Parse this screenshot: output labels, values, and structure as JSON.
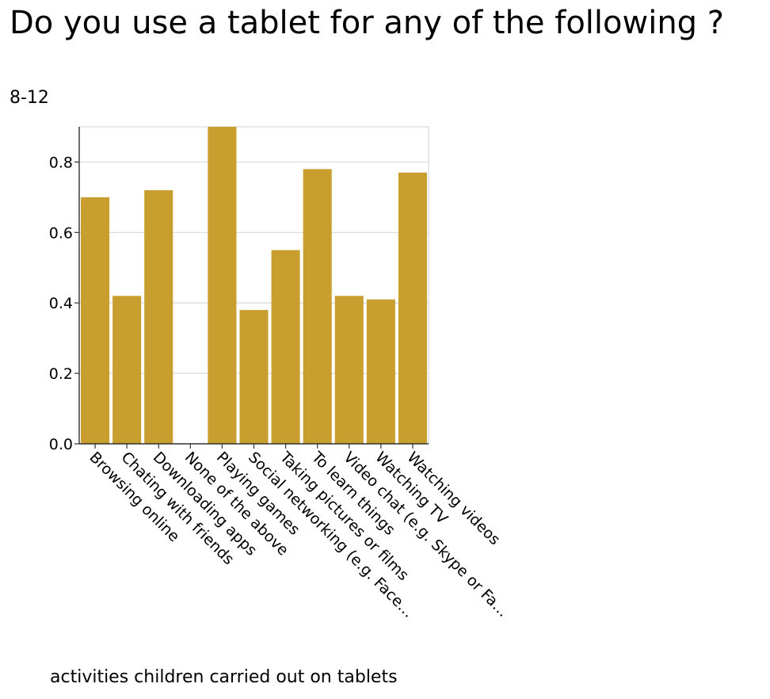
{
  "title": "Do you use a tablet for any of the following ?",
  "subtitle": "8-12",
  "chart_data": {
    "type": "bar",
    "title": "Do you use a tablet for any of the following ?",
    "subtitle": "8-12",
    "xlabel": "activities children carried out on tablets",
    "ylabel": "",
    "ylim": [
      0,
      0.9
    ],
    "yticks": [
      0.0,
      0.2,
      0.4,
      0.6,
      0.8
    ],
    "ytick_labels": [
      "0.0",
      "0.2",
      "0.4",
      "0.6",
      "0.8"
    ],
    "grid": true,
    "bar_color": "#c89f2e",
    "categories": [
      "Browsing online",
      "Chating with friends",
      "Downloading apps",
      "None of the above",
      "Playing games",
      "Social networking (e.g. Face…",
      "Taking pictures or films",
      "To learn things",
      "Video chat (e.g. Skype or Fa…",
      "Watching TV",
      "Watching videos"
    ],
    "values": [
      0.7,
      0.42,
      0.72,
      0.0,
      0.9,
      0.38,
      0.55,
      0.78,
      0.42,
      0.41,
      0.77
    ]
  }
}
